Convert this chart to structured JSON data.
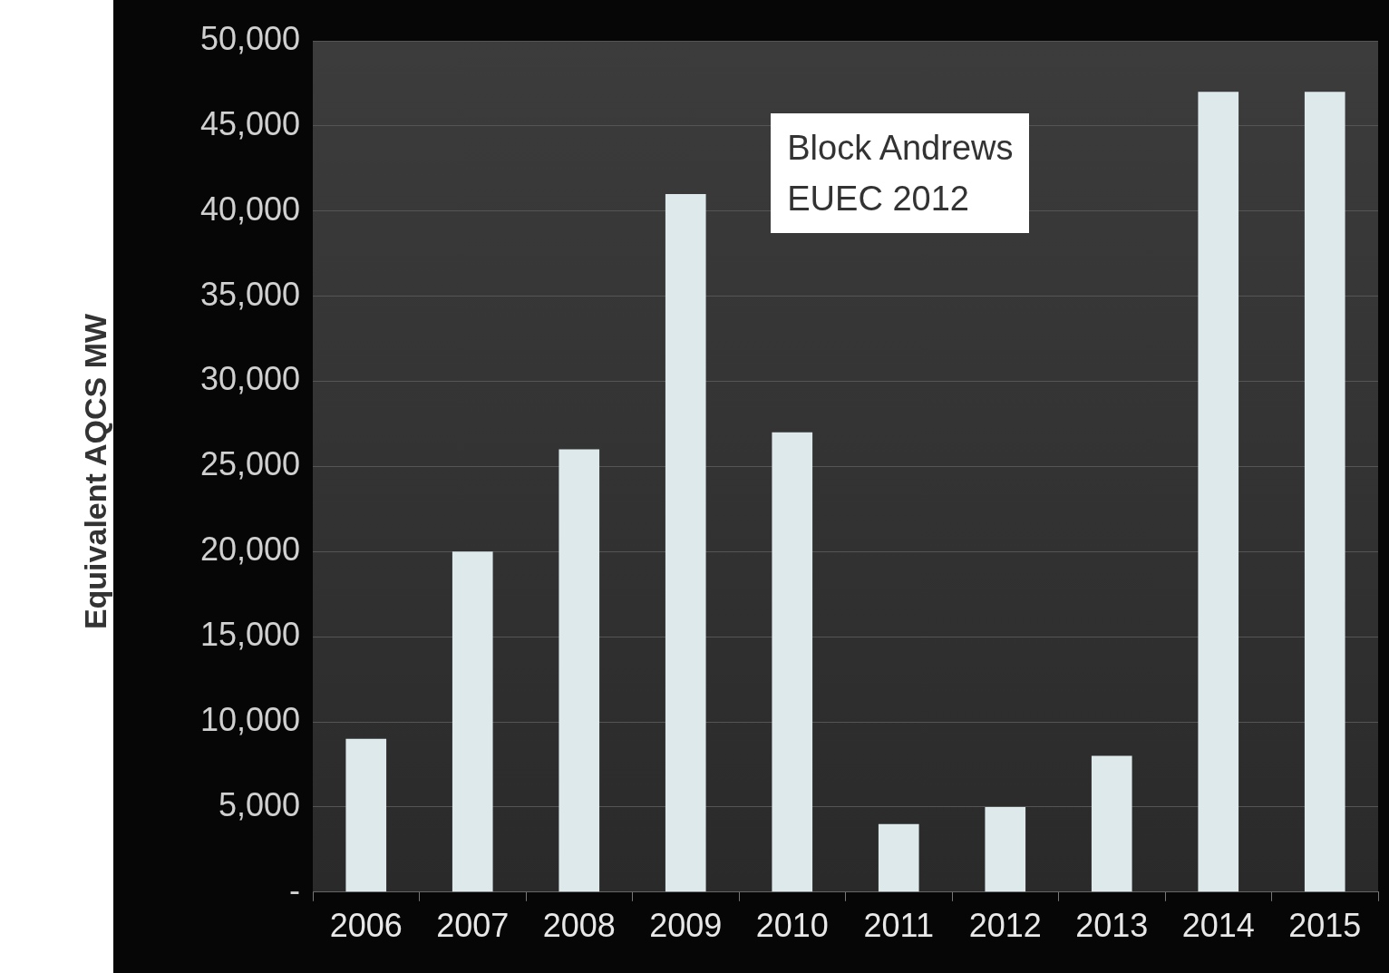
{
  "chart_data": {
    "type": "bar",
    "ylabel": "Equivalent AQCS MW",
    "categories": [
      "2006",
      "2007",
      "2008",
      "2009",
      "2010",
      "2011",
      "2012",
      "2013",
      "2014",
      "2015"
    ],
    "values": [
      9000,
      20000,
      26000,
      41000,
      27000,
      4000,
      5000,
      8000,
      47000,
      47000
    ],
    "color": "#dde9eb",
    "ylim": [
      0,
      50000
    ],
    "yticks": [
      {
        "value": 0,
        "label": "-"
      },
      {
        "value": 5000,
        "label": "5,000"
      },
      {
        "value": 10000,
        "label": "10,000"
      },
      {
        "value": 15000,
        "label": "15,000"
      },
      {
        "value": 20000,
        "label": "20,000"
      },
      {
        "value": 25000,
        "label": "25,000"
      },
      {
        "value": 30000,
        "label": "30,000"
      },
      {
        "value": 35000,
        "label": "35,000"
      },
      {
        "value": 40000,
        "label": "40,000"
      },
      {
        "value": 45000,
        "label": "45,000"
      },
      {
        "value": 50000,
        "label": "50,000"
      }
    ],
    "grid": "y",
    "legend": false,
    "annotations": [
      "Block Andrews",
      "EUEC 2012"
    ]
  }
}
